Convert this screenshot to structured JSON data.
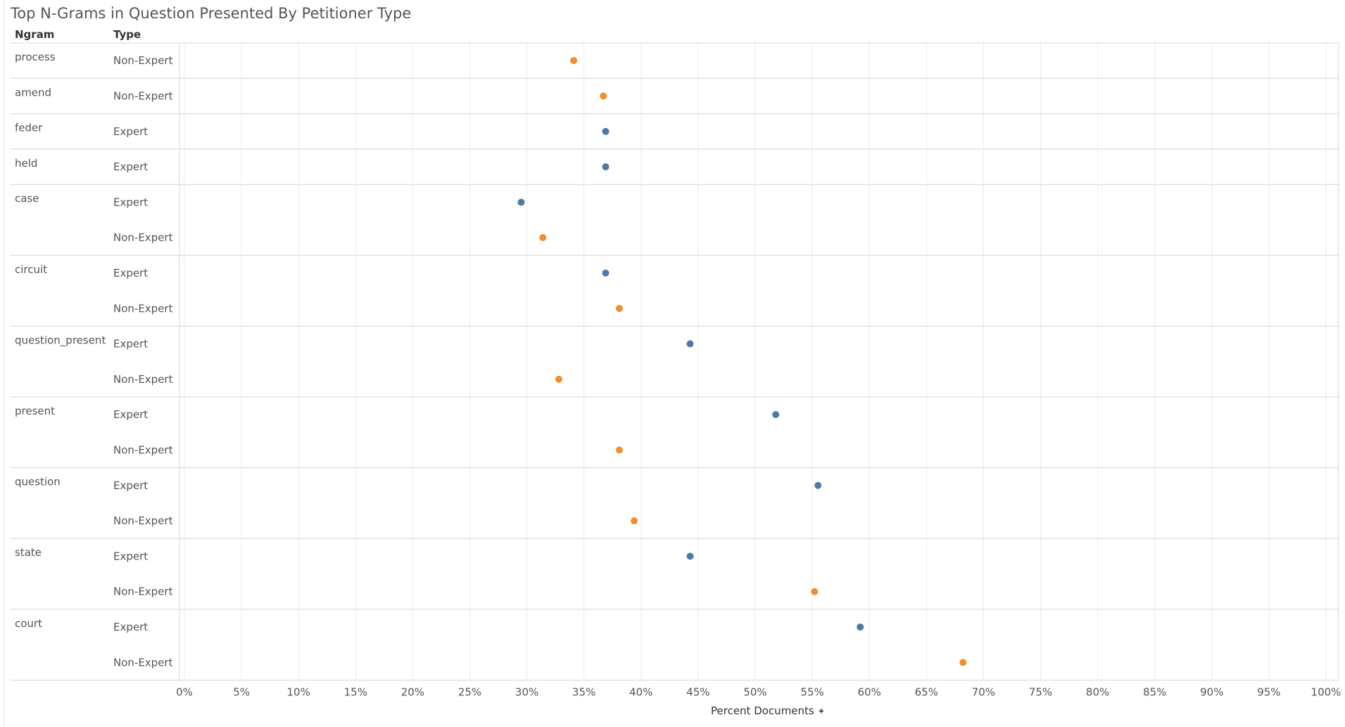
{
  "header": {
    "ngram_label": "Ngram",
    "type_label": "Type"
  },
  "colors": {
    "Expert": "#4e79a7",
    "Non-Expert": "#f28e2b",
    "grid": "#ececec",
    "divider": "#d4d4d4"
  },
  "chart_data": {
    "type": "scatter",
    "title": "Top N-Grams in Question Presented By Petitioner Type",
    "xlabel": "Percent Documents",
    "xlabel_icon": "pin-icon",
    "xlim": [
      0,
      100
    ],
    "xticks": [
      "0%",
      "5%",
      "10%",
      "15%",
      "20%",
      "25%",
      "30%",
      "35%",
      "40%",
      "45%",
      "50%",
      "55%",
      "60%",
      "65%",
      "70%",
      "75%",
      "80%",
      "85%",
      "90%",
      "95%",
      "100%"
    ],
    "series": [
      {
        "name": "Expert"
      },
      {
        "name": "Non-Expert"
      }
    ],
    "groups": [
      {
        "ngram": "process",
        "rows": [
          {
            "type": "Non-Expert",
            "value": 34.1
          }
        ]
      },
      {
        "ngram": "amend",
        "rows": [
          {
            "type": "Non-Expert",
            "value": 36.7
          }
        ]
      },
      {
        "ngram": "feder",
        "rows": [
          {
            "type": "Expert",
            "value": 36.9
          }
        ]
      },
      {
        "ngram": "held",
        "rows": [
          {
            "type": "Expert",
            "value": 36.9
          }
        ]
      },
      {
        "ngram": "case",
        "rows": [
          {
            "type": "Expert",
            "value": 29.5
          },
          {
            "type": "Non-Expert",
            "value": 31.4
          }
        ]
      },
      {
        "ngram": "circuit",
        "rows": [
          {
            "type": "Expert",
            "value": 36.9
          },
          {
            "type": "Non-Expert",
            "value": 38.1
          }
        ]
      },
      {
        "ngram": "question_present",
        "rows": [
          {
            "type": "Expert",
            "value": 44.3
          },
          {
            "type": "Non-Expert",
            "value": 32.8
          }
        ]
      },
      {
        "ngram": "present",
        "rows": [
          {
            "type": "Expert",
            "value": 51.8
          },
          {
            "type": "Non-Expert",
            "value": 38.1
          }
        ]
      },
      {
        "ngram": "question",
        "rows": [
          {
            "type": "Expert",
            "value": 55.5
          },
          {
            "type": "Non-Expert",
            "value": 39.4
          }
        ]
      },
      {
        "ngram": "state",
        "rows": [
          {
            "type": "Expert",
            "value": 44.3
          },
          {
            "type": "Non-Expert",
            "value": 55.2
          }
        ]
      },
      {
        "ngram": "court",
        "rows": [
          {
            "type": "Expert",
            "value": 59.2
          },
          {
            "type": "Non-Expert",
            "value": 68.2
          }
        ]
      }
    ]
  }
}
